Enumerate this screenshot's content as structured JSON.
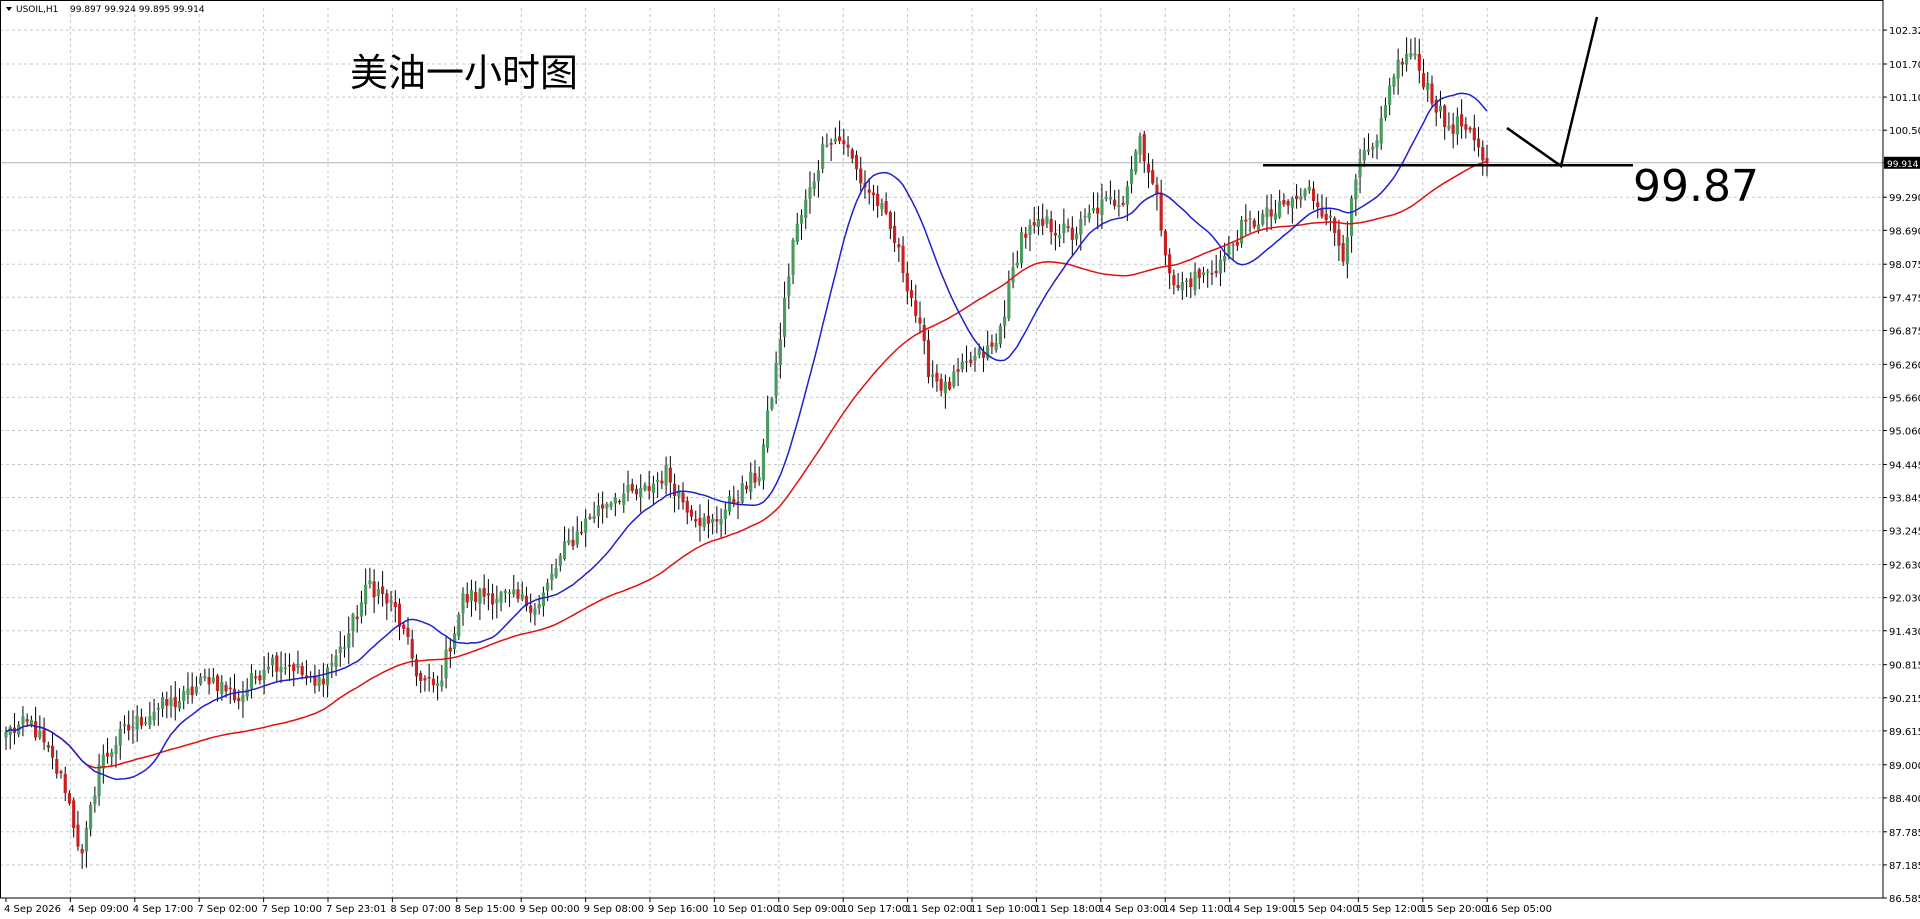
{
  "header": {
    "symbol": "USOIL,H1",
    "ohlc": "99.897 99.924 99.895 99.914"
  },
  "chart_data": {
    "type": "candlestick",
    "title": "美油一小时图",
    "annotation_value": "99.87",
    "current_price": "99.914",
    "ylim": [
      86.585,
      102.72
    ],
    "price_ticks": [
      "102.320",
      "101.705",
      "101.105",
      "100.505",
      "99.914",
      "99.290",
      "98.690",
      "98.075",
      "97.475",
      "96.875",
      "96.260",
      "95.660",
      "95.060",
      "94.445",
      "93.845",
      "93.245",
      "92.630",
      "92.030",
      "91.430",
      "90.815",
      "90.215",
      "89.615",
      "89.000",
      "88.400",
      "87.785",
      "87.185",
      "86.585"
    ],
    "time_labels": [
      "4 Sep 2026",
      "4 Sep 09:00",
      "4 Sep 17:00",
      "7 Sep 02:00",
      "7 Sep 10:00",
      "7 Sep 23:01",
      "8 Sep 07:00",
      "8 Sep 15:00",
      "9 Sep 00:00",
      "9 Sep 08:00",
      "9 Sep 16:00",
      "10 Sep 01:00",
      "10 Sep 09:00",
      "10 Sep 17:00",
      "11 Sep 02:00",
      "11 Sep 10:00",
      "11 Sep 18:00",
      "14 Sep 03:00",
      "14 Sep 11:00",
      "14 Sep 19:00",
      "15 Sep 04:00",
      "15 Sep 12:00",
      "15 Sep 20:00",
      "16 Sep 05:00"
    ],
    "horizontal_line": 99.87,
    "grid": true,
    "colors": {
      "bull": "#4a9a5e",
      "bear": "#c82020",
      "ma_fast": "#1f1fd0",
      "ma_slow": "#e01010",
      "grid": "#c8c8c8"
    },
    "close_anchors": [
      [
        0,
        89.6
      ],
      [
        6,
        89.75
      ],
      [
        10,
        89.2
      ],
      [
        14,
        88.6
      ],
      [
        18,
        87.3
      ],
      [
        22,
        89.0
      ],
      [
        28,
        89.6
      ],
      [
        35,
        90.0
      ],
      [
        42,
        90.2
      ],
      [
        48,
        90.6
      ],
      [
        55,
        90.2
      ],
      [
        62,
        90.9
      ],
      [
        68,
        90.8
      ],
      [
        73,
        90.4
      ],
      [
        80,
        91.2
      ],
      [
        86,
        92.3
      ],
      [
        92,
        91.8
      ],
      [
        98,
        90.5
      ],
      [
        102,
        90.4
      ],
      [
        108,
        92.0
      ],
      [
        114,
        92.1
      ],
      [
        120,
        92.0
      ],
      [
        126,
        91.9
      ],
      [
        132,
        92.9
      ],
      [
        138,
        93.5
      ],
      [
        144,
        93.9
      ],
      [
        150,
        93.9
      ],
      [
        156,
        94.3
      ],
      [
        160,
        93.8
      ],
      [
        166,
        93.3
      ],
      [
        172,
        93.8
      ],
      [
        178,
        94.3
      ],
      [
        182,
        96.2
      ],
      [
        186,
        98.5
      ],
      [
        190,
        99.4
      ],
      [
        194,
        100.4
      ],
      [
        198,
        100.3
      ],
      [
        202,
        99.6
      ],
      [
        206,
        99.2
      ],
      [
        210,
        98.5
      ],
      [
        214,
        97.5
      ],
      [
        218,
        96.2
      ],
      [
        222,
        95.8
      ],
      [
        228,
        96.3
      ],
      [
        234,
        96.6
      ],
      [
        240,
        98.6
      ],
      [
        246,
        98.8
      ],
      [
        252,
        98.6
      ],
      [
        258,
        99.1
      ],
      [
        264,
        99.3
      ],
      [
        268,
        100.4
      ],
      [
        272,
        99.2
      ],
      [
        276,
        97.6
      ],
      [
        280,
        97.8
      ],
      [
        284,
        97.9
      ],
      [
        288,
        98.2
      ],
      [
        292,
        98.7
      ],
      [
        296,
        98.9
      ],
      [
        300,
        99.0
      ],
      [
        304,
        99.2
      ],
      [
        308,
        99.4
      ],
      [
        312,
        99.0
      ],
      [
        316,
        98.3
      ],
      [
        320,
        99.9
      ],
      [
        324,
        100.2
      ],
      [
        328,
        101.6
      ],
      [
        332,
        101.9
      ],
      [
        336,
        101.3
      ],
      [
        340,
        100.6
      ],
      [
        344,
        100.6
      ],
      [
        348,
        100.1
      ],
      [
        350,
        99.91
      ]
    ],
    "candle_count": 351,
    "ma_fast_period": 20,
    "ma_slow_period": 60
  }
}
